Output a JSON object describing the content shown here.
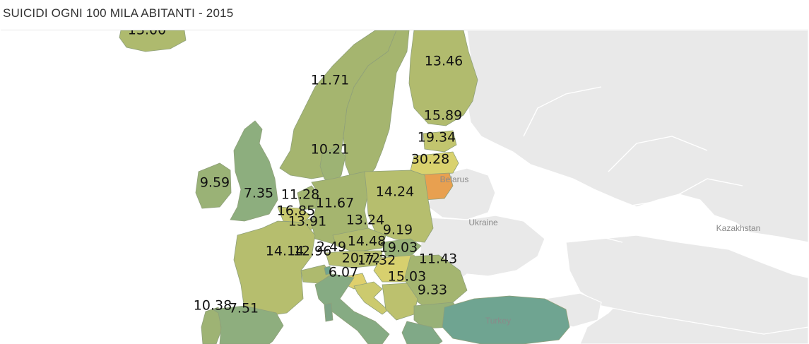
{
  "title": "SUICIDI OGNI 100 MILA ABITANTI - 2015",
  "colors": {
    "background": "#ffffff",
    "land_no_data": "#e9e9e9",
    "border": "#ffffff",
    "scale_low": "#6fa491",
    "scale_mid": "#a7b66e",
    "scale_high": "#e8a050"
  },
  "reference_labels": [
    {
      "id": "belarus",
      "text": "Belarus"
    },
    {
      "id": "ukraine",
      "text": "Ukraine"
    },
    {
      "id": "kazakhstan",
      "text": "Kazakhstan"
    },
    {
      "id": "turkey",
      "text": "Turkey"
    }
  ],
  "chart_data": {
    "type": "choropleth",
    "regions": [
      {
        "id": "iceland",
        "value": 13.0
      },
      {
        "id": "norway",
        "value": 11.71
      },
      {
        "id": "sweden",
        "value": 11.71
      },
      {
        "id": "finland",
        "value": 13.46
      },
      {
        "id": "estonia",
        "value": 15.89
      },
      {
        "id": "latvia",
        "value": 19.34
      },
      {
        "id": "lithuania",
        "value": 30.28
      },
      {
        "id": "denmark",
        "value": 10.21
      },
      {
        "id": "ireland",
        "value": 9.59
      },
      {
        "id": "uk",
        "value": 7.35
      },
      {
        "id": "netherlands",
        "value": 11.28
      },
      {
        "id": "belgium",
        "value": 16.85
      },
      {
        "id": "luxembourg",
        "value": 13.91
      },
      {
        "id": "germany",
        "value": 11.67
      },
      {
        "id": "poland",
        "value": 14.24
      },
      {
        "id": "czechia",
        "value": 13.24
      },
      {
        "id": "slovakia",
        "value": 9.19
      },
      {
        "id": "austria",
        "value": 14.48
      },
      {
        "id": "hungary",
        "value": 19.03
      },
      {
        "id": "switzerland",
        "value": 12.96
      },
      {
        "id": "liechtenstein",
        "value": 2.49
      },
      {
        "id": "slovenia",
        "value": 20.72
      },
      {
        "id": "croatia",
        "value": 17.32
      },
      {
        "id": "romania",
        "value": 11.43
      },
      {
        "id": "serbia",
        "value": 15.03
      },
      {
        "id": "bulgaria",
        "value": 9.33
      },
      {
        "id": "france",
        "value": 14.14
      },
      {
        "id": "italy",
        "value": 6.07
      },
      {
        "id": "portugal",
        "value": 10.38
      },
      {
        "id": "spain",
        "value": 7.51
      },
      {
        "id": "turkey",
        "value": 2.0
      },
      {
        "id": "greece",
        "value": 5.0
      }
    ],
    "labels": [
      {
        "id": "iceland",
        "text": "13.00"
      },
      {
        "id": "norway",
        "text": "11.71"
      },
      {
        "id": "finland",
        "text": "13.46"
      },
      {
        "id": "estonia",
        "text": "15.89"
      },
      {
        "id": "latvia",
        "text": "19.34"
      },
      {
        "id": "lithuania",
        "text": "30.28"
      },
      {
        "id": "denmark",
        "text": "10.21"
      },
      {
        "id": "ireland",
        "text": "9.59"
      },
      {
        "id": "uk",
        "text": "7.35"
      },
      {
        "id": "netherlands",
        "text": "11.28"
      },
      {
        "id": "belgium",
        "text": "16.85"
      },
      {
        "id": "germany",
        "text": "11.67"
      },
      {
        "id": "luxembourg",
        "text": "13.91"
      },
      {
        "id": "poland",
        "text": "14.24"
      },
      {
        "id": "czechia",
        "text": "13.24"
      },
      {
        "id": "slovakia",
        "text": "9.19"
      },
      {
        "id": "austria",
        "text": "14.48"
      },
      {
        "id": "hungary",
        "text": "19.03"
      },
      {
        "id": "france",
        "text": "14.14"
      },
      {
        "id": "switzerland",
        "text": "12.96"
      },
      {
        "id": "liechtenstein",
        "text": "2.49"
      },
      {
        "id": "slovenia",
        "text": "20.72"
      },
      {
        "id": "croatia",
        "text": "17.32"
      },
      {
        "id": "romania",
        "text": "11.43"
      },
      {
        "id": "italy",
        "text": "6.07"
      },
      {
        "id": "serbia",
        "text": "15.03"
      },
      {
        "id": "bulgaria",
        "text": "9.33"
      },
      {
        "id": "portugal",
        "text": "10.38"
      },
      {
        "id": "spain",
        "text": "7.51"
      }
    ]
  }
}
